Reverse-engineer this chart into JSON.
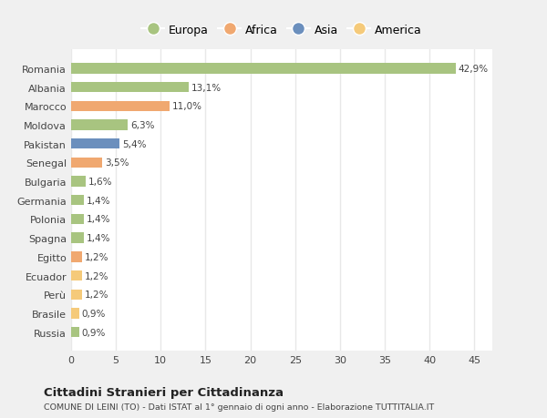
{
  "countries": [
    "Russia",
    "Brasile",
    "Perù",
    "Ecuador",
    "Egitto",
    "Spagna",
    "Polonia",
    "Germania",
    "Bulgaria",
    "Senegal",
    "Pakistan",
    "Moldova",
    "Marocco",
    "Albania",
    "Romania"
  ],
  "values": [
    0.9,
    0.9,
    1.2,
    1.2,
    1.2,
    1.4,
    1.4,
    1.4,
    1.6,
    3.5,
    5.4,
    6.3,
    11.0,
    13.1,
    42.9
  ],
  "labels": [
    "0,9%",
    "0,9%",
    "1,2%",
    "1,2%",
    "1,2%",
    "1,4%",
    "1,4%",
    "1,4%",
    "1,6%",
    "3,5%",
    "5,4%",
    "6,3%",
    "11,0%",
    "13,1%",
    "42,9%"
  ],
  "colors": [
    "#a8c480",
    "#f5ca7a",
    "#f5ca7a",
    "#f5ca7a",
    "#f0a870",
    "#a8c480",
    "#a8c480",
    "#a8c480",
    "#a8c480",
    "#f0a870",
    "#6b8fbd",
    "#a8c480",
    "#f0a870",
    "#a8c480",
    "#a8c480"
  ],
  "legend_names": [
    "Europa",
    "Africa",
    "Asia",
    "America"
  ],
  "legend_colors": [
    "#a8c480",
    "#f0a870",
    "#6b8fbd",
    "#f5ca7a"
  ],
  "xlim": [
    0,
    47
  ],
  "xticks": [
    0,
    5,
    10,
    15,
    20,
    25,
    30,
    35,
    40,
    45
  ],
  "title": "Cittadini Stranieri per Cittadinanza",
  "subtitle": "COMUNE DI LEINI (TO) - Dati ISTAT al 1° gennaio di ogni anno - Elaborazione TUTTITALIA.IT",
  "fig_bg": "#f0f0f0",
  "plot_bg": "#ffffff",
  "bar_height": 0.55,
  "grid_color": "#e8e8e8",
  "text_color": "#444444",
  "label_fontsize": 7.5,
  "tick_fontsize": 8,
  "legend_fontsize": 9
}
